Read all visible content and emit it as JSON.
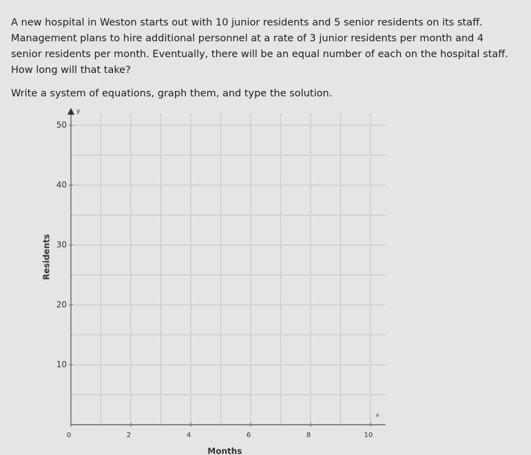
{
  "problem": "A new hospital in Weston starts out with 10 junior residents and 5 senior residents on its staff. Management plans to hire additional personnel at a rate of 3 junior residents per month and 4 senior residents per month. Eventually, there will be an equal number of each on the hospital staff. How long will that take?",
  "instruction": "Write a system of equations, graph them, and type the solution.",
  "graph": {
    "xlabel": "Months",
    "ylabel": "Residents",
    "x_axis_name": "x",
    "y_axis_name": "y",
    "xlim": [
      0,
      10.5
    ],
    "ylim": [
      0,
      52
    ],
    "xticks": [
      0,
      2,
      4,
      6,
      8,
      10
    ],
    "yticks": [
      10,
      20,
      30,
      40,
      50
    ],
    "x_grid_step": 1,
    "y_grid_step": 5
  }
}
